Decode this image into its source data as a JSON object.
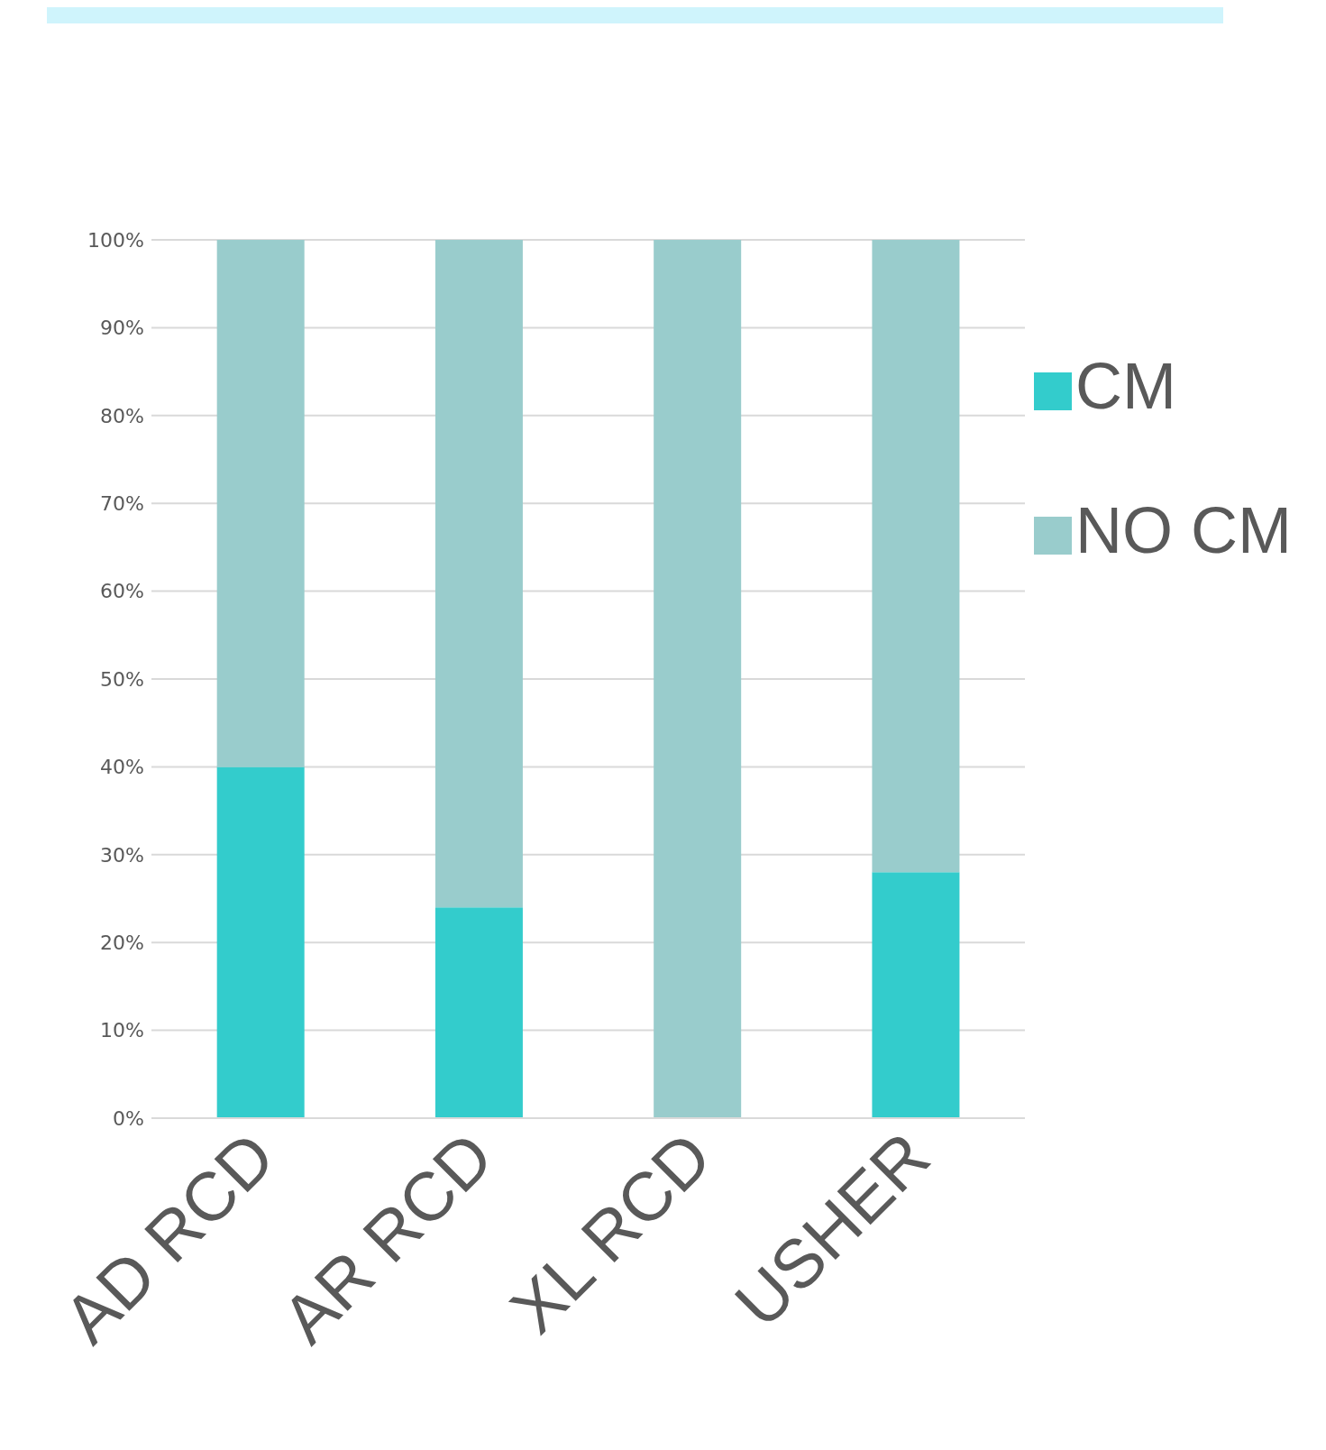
{
  "chart_data": {
    "type": "bar",
    "stacked": true,
    "categories": [
      "AD RCD",
      "AR RCD",
      "XL RCD",
      "USHER"
    ],
    "series": [
      {
        "name": "CM",
        "color": "#33cccc",
        "values": [
          40,
          24,
          0,
          28
        ]
      },
      {
        "name": "NO CM",
        "color": "#99cccc",
        "values": [
          60,
          76,
          100,
          72
        ]
      }
    ],
    "ylim": [
      0,
      100
    ],
    "yticks": [
      {
        "value": 0,
        "label": "0%"
      },
      {
        "value": 10,
        "label": "10%"
      },
      {
        "value": 20,
        "label": "20%"
      },
      {
        "value": 30,
        "label": "30%"
      },
      {
        "value": 40,
        "label": "40%"
      },
      {
        "value": 50,
        "label": "50%"
      },
      {
        "value": 60,
        "label": "60%"
      },
      {
        "value": 70,
        "label": "70%"
      },
      {
        "value": 80,
        "label": "80%"
      },
      {
        "value": 90,
        "label": "90%"
      },
      {
        "value": 100,
        "label": "100%"
      }
    ],
    "grid": "y",
    "legend": "right"
  }
}
